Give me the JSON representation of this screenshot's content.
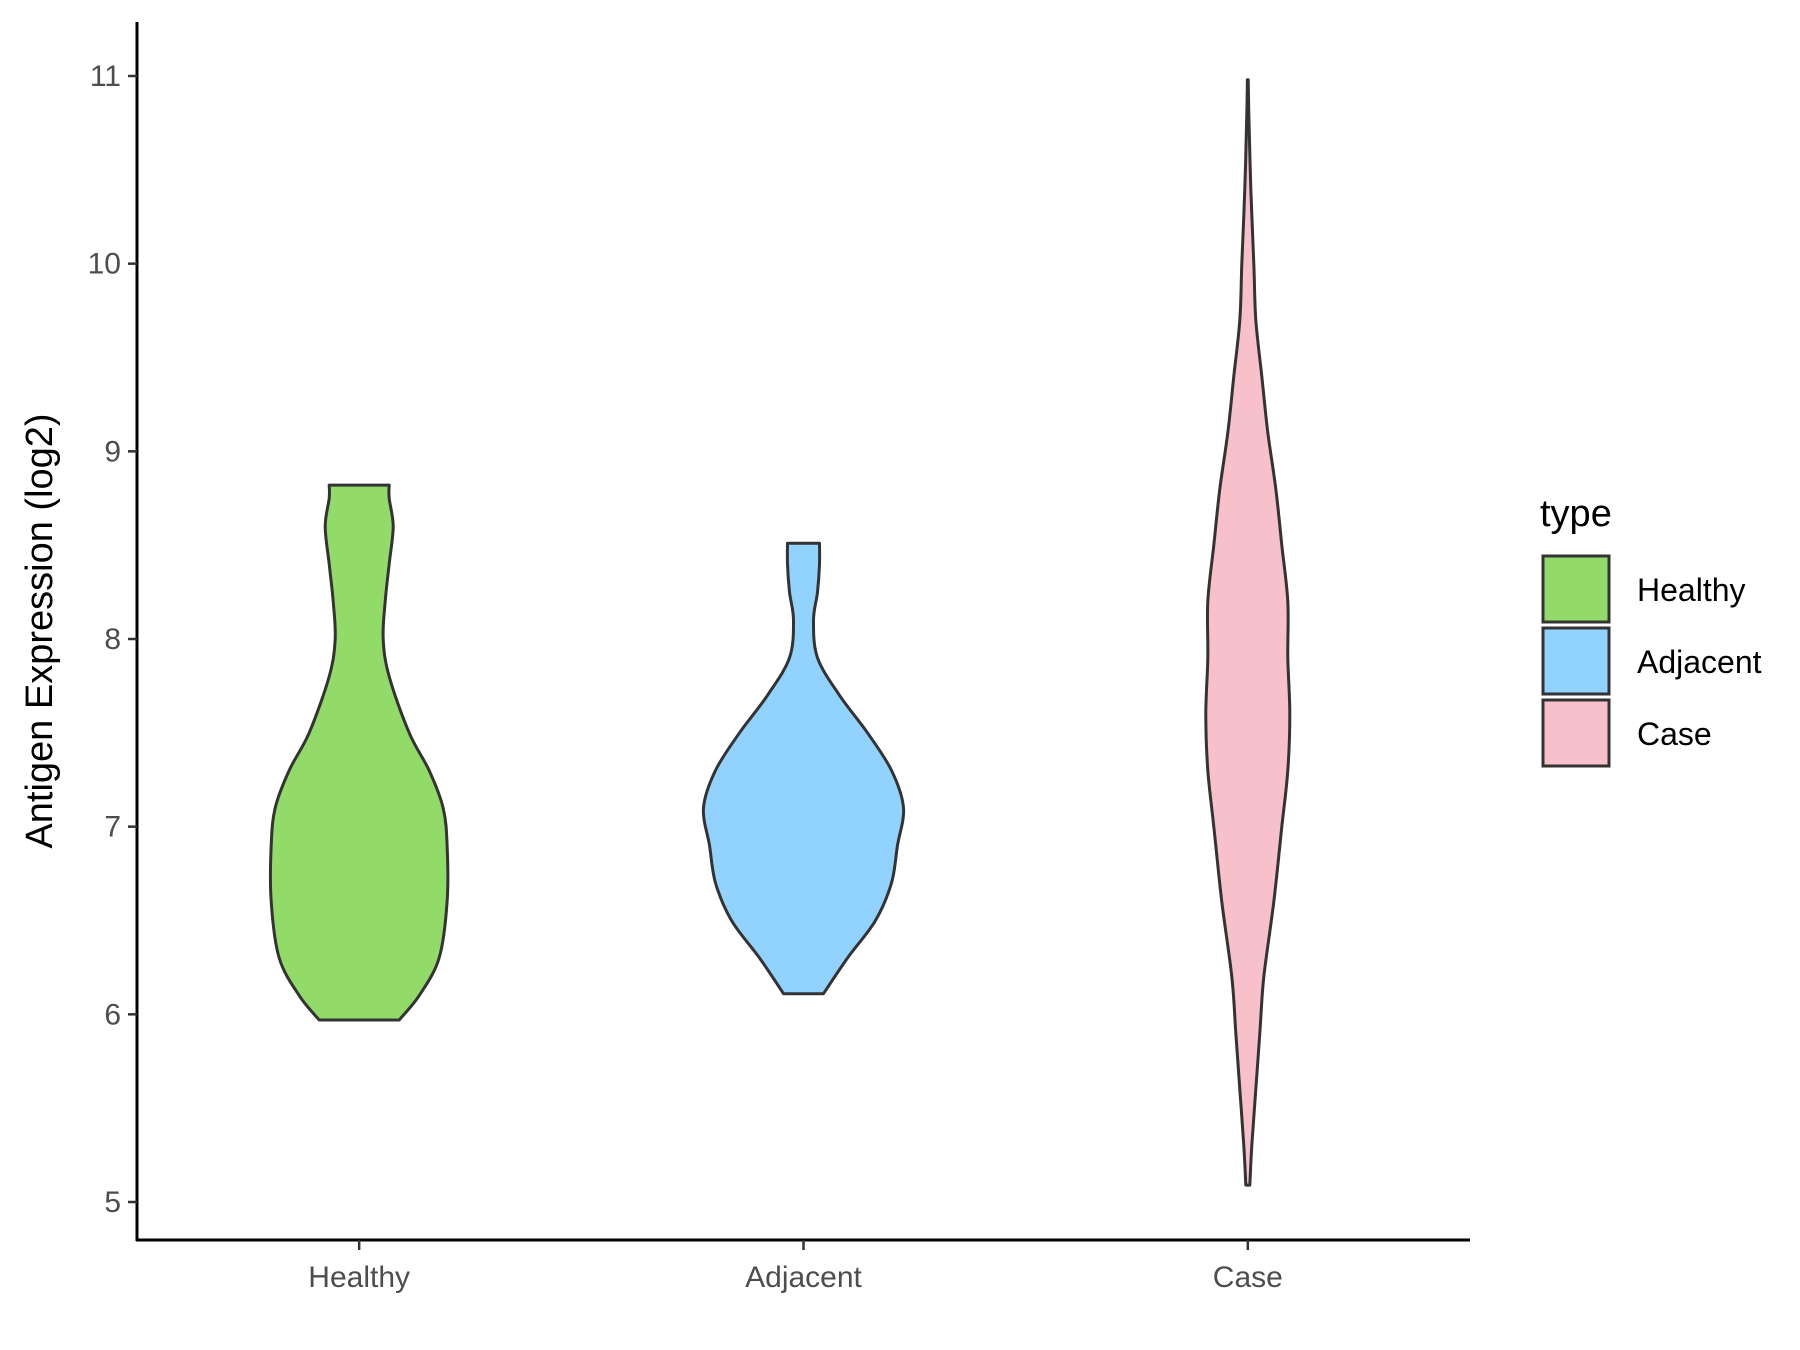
{
  "chart_data": {
    "type": "violin",
    "xlabel": "",
    "ylabel": "Antigen Expression (log2)",
    "ylim": [
      4.8,
      11.3
    ],
    "yticks": [
      "5",
      "6",
      "7",
      "8",
      "9",
      "10",
      "11"
    ],
    "categories": [
      "Healthy",
      "Adjacent",
      "Case"
    ],
    "legend": {
      "title": "type",
      "placement": "right",
      "items": [
        {
          "label": "Healthy",
          "color": "#93DB69"
        },
        {
          "label": "Adjacent",
          "color": "#92D2FE"
        },
        {
          "label": "Case",
          "color": "#F8C0CB"
        }
      ]
    },
    "outline_color": "#333333",
    "series": [
      {
        "name": "Healthy",
        "color": "#93DB69",
        "profile": [
          [
            5.97,
            0.2
          ],
          [
            6.1,
            0.3
          ],
          [
            6.3,
            0.4
          ],
          [
            6.6,
            0.44
          ],
          [
            6.9,
            0.44
          ],
          [
            7.1,
            0.42
          ],
          [
            7.3,
            0.35
          ],
          [
            7.5,
            0.25
          ],
          [
            7.8,
            0.15
          ],
          [
            8.0,
            0.12
          ],
          [
            8.2,
            0.13
          ],
          [
            8.4,
            0.15
          ],
          [
            8.6,
            0.17
          ],
          [
            8.75,
            0.15
          ],
          [
            8.82,
            0.15
          ]
        ]
      },
      {
        "name": "Adjacent",
        "color": "#92D2FE",
        "profile": [
          [
            6.11,
            0.1
          ],
          [
            6.3,
            0.22
          ],
          [
            6.5,
            0.36
          ],
          [
            6.7,
            0.44
          ],
          [
            6.9,
            0.47
          ],
          [
            7.1,
            0.5
          ],
          [
            7.3,
            0.44
          ],
          [
            7.5,
            0.32
          ],
          [
            7.7,
            0.18
          ],
          [
            7.9,
            0.07
          ],
          [
            8.1,
            0.05
          ],
          [
            8.25,
            0.07
          ],
          [
            8.4,
            0.08
          ],
          [
            8.51,
            0.08
          ]
        ]
      },
      {
        "name": "Case",
        "color": "#F8C0CB",
        "profile": [
          [
            5.09,
            0.01
          ],
          [
            5.3,
            0.02
          ],
          [
            5.6,
            0.04
          ],
          [
            5.9,
            0.06
          ],
          [
            6.2,
            0.08
          ],
          [
            6.6,
            0.13
          ],
          [
            7.0,
            0.17
          ],
          [
            7.3,
            0.2
          ],
          [
            7.6,
            0.21
          ],
          [
            7.9,
            0.2
          ],
          [
            8.2,
            0.2
          ],
          [
            8.5,
            0.17
          ],
          [
            8.8,
            0.14
          ],
          [
            9.1,
            0.1
          ],
          [
            9.4,
            0.07
          ],
          [
            9.7,
            0.04
          ],
          [
            10.0,
            0.03
          ],
          [
            10.4,
            0.015
          ],
          [
            10.8,
            0.005
          ],
          [
            10.98,
            0.002
          ]
        ]
      }
    ]
  }
}
